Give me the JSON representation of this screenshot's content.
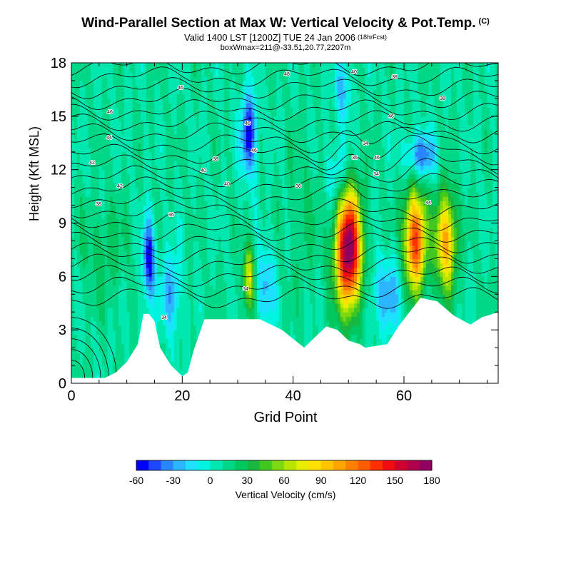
{
  "header": {
    "title": "Wind-Parallel Section at Max W: Vertical Velocity & Pot.Temp.",
    "title_mark": "(C)",
    "subtitle": "Valid 1400 LST [1200Z] TUE 24 Jan 2006",
    "subtitle_note": "(18hrFcst)",
    "line3": "boxWmax=211@-33.51,20.77,2207m"
  },
  "chart_data": {
    "type": "heatmap",
    "title": "Wind-Parallel Section at Max W: Vertical Velocity & Pot.Temp.",
    "xlabel": "Grid Point",
    "ylabel": "Height (Kft MSL)",
    "xlim": [
      0,
      77
    ],
    "ylim": [
      0,
      18
    ],
    "xticks": [
      0,
      20,
      40,
      60
    ],
    "yticks": [
      0,
      3,
      6,
      9,
      12,
      15,
      18
    ],
    "colorbar": {
      "label": "Vertical Velocity (cm/s)",
      "ticks": [
        -60,
        -30,
        0,
        30,
        60,
        90,
        120,
        150,
        180
      ],
      "levels": [
        -60,
        -50,
        -40,
        -30,
        -20,
        -10,
        0,
        10,
        20,
        30,
        40,
        50,
        60,
        70,
        80,
        90,
        100,
        110,
        120,
        130,
        140,
        150,
        160,
        170,
        180
      ],
      "colors": [
        "#0000ff",
        "#1e46ff",
        "#2a86ff",
        "#2cb6ff",
        "#1ee0ff",
        "#00f4e0",
        "#00e8b0",
        "#00d888",
        "#00c860",
        "#18b840",
        "#40c820",
        "#7cd810",
        "#b8e400",
        "#e8ec00",
        "#ffe000",
        "#ffc400",
        "#ffa400",
        "#ff8000",
        "#ff5c00",
        "#ff3000",
        "#f00c10",
        "#d00030",
        "#b0004c",
        "#900060"
      ]
    },
    "terrain_kft": [
      [
        0,
        0.3
      ],
      [
        6,
        0.3
      ],
      [
        8,
        0.6
      ],
      [
        10,
        1.2
      ],
      [
        12,
        2.2
      ],
      [
        13,
        3.9
      ],
      [
        14,
        3.9
      ],
      [
        15,
        3.5
      ],
      [
        16,
        2.0
      ],
      [
        18,
        1.0
      ],
      [
        20,
        0.4
      ],
      [
        21,
        0.6
      ],
      [
        22,
        1.8
      ],
      [
        24,
        3.6
      ],
      [
        30,
        3.6
      ],
      [
        34,
        3.6
      ],
      [
        36,
        3.3
      ],
      [
        38,
        3.0
      ],
      [
        40,
        2.5
      ],
      [
        42,
        2.0
      ],
      [
        44,
        2.6
      ],
      [
        46,
        3.2
      ],
      [
        48,
        3.0
      ],
      [
        50,
        2.4
      ],
      [
        52,
        2.2
      ],
      [
        53,
        2.0
      ],
      [
        57,
        2.2
      ],
      [
        59,
        3.2
      ],
      [
        61,
        4.0
      ],
      [
        63,
        4.8
      ],
      [
        66,
        4.6
      ],
      [
        69,
        3.8
      ],
      [
        72,
        3.3
      ],
      [
        74,
        3.7
      ],
      [
        77,
        4.0
      ]
    ],
    "updraft_cores": [
      {
        "x": 50,
        "y_kft": 7.5,
        "w_cms": 180
      },
      {
        "x": 62,
        "y_kft": 8.0,
        "w_cms": 130
      },
      {
        "x": 67.5,
        "y_kft": 8.0,
        "w_cms": 100
      },
      {
        "x": 32,
        "y_kft": 6.0,
        "w_cms": 70
      }
    ],
    "downdraft_cores": [
      {
        "x": 32,
        "y_kft": 14.0,
        "w_cms": -60
      },
      {
        "x": 14,
        "y_kft": 7.0,
        "w_cms": -60
      },
      {
        "x": 63,
        "y_kft": 12.8,
        "w_cms": -40
      },
      {
        "x": 49,
        "y_kft": 16.0,
        "w_cms": -35
      }
    ],
    "theta_contour_labels": [
      "48",
      "46",
      "46",
      "44",
      "46",
      "42",
      "40",
      "42",
      "38",
      "40",
      "38",
      "36",
      "36",
      "36",
      "34",
      "34",
      "34",
      "34",
      "46",
      "46",
      "46",
      "44",
      "40",
      "38",
      "38"
    ]
  }
}
